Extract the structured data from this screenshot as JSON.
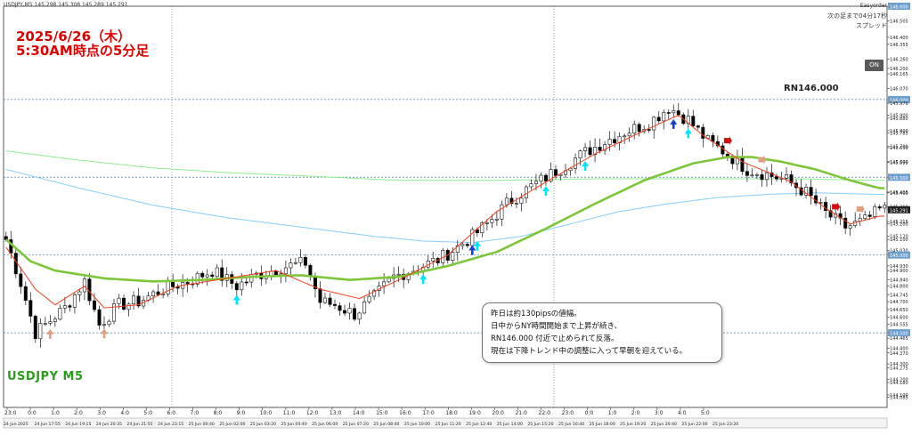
{
  "header": {
    "symbol_line": "USDJPY,M5  145.298 145.308 145.289 145.291",
    "indicator": "Easyorder",
    "countdown": "次の足まで04分17秒",
    "spread": "スプレッド"
  },
  "annotations": {
    "title_line1": "2025/6/26（木）",
    "title_line2": "5:30AM時点の5分足",
    "symbol": "USDJPY M5",
    "rn_label": "RN146.000",
    "on_button": "ON",
    "note_lines": [
      "昨日は約130pipsの値幅。",
      "日中からNY時間開始まで上昇が続き、",
      "RN146.000 付近で止められて反落。",
      "現在は下降トレンド中の調整に入って早朝を迎えている。"
    ]
  },
  "colors": {
    "bull": "#000000",
    "bear": "#000000",
    "ema_fast": "#f04020",
    "ema_mid": "#7dc63a",
    "ma_slow1": "#90ee90",
    "ma_slow2": "#87cefa",
    "title": "#e00000",
    "symbol": "#2a9d1a",
    "arrow_up": "#00e5ff",
    "arrow_buy": "#1a3cd6",
    "arrow_sell": "#d01010",
    "arrow_faint": "#e0a080"
  },
  "chart_data": {
    "type": "candlestick",
    "ylim": [
      144.02,
      146.6
    ],
    "y_ticks": [
      "146.600",
      "146.505",
      "146.400",
      "146.355",
      "146.260",
      "146.200",
      "146.165",
      "146.070",
      "146.000",
      "145.976",
      "145.900",
      "145.880",
      "145.800",
      "145.785",
      "145.700",
      "145.690",
      "145.600",
      "145.595",
      "145.500",
      "145.405",
      "145.400",
      "145.310",
      "145.291",
      "145.215",
      "145.200",
      "145.120",
      "145.100",
      "145.030",
      "145.000",
      "144.930",
      "144.900",
      "144.840",
      "144.800",
      "144.745",
      "144.700",
      "144.650",
      "144.600",
      "144.555",
      "144.500",
      "144.465",
      "144.400",
      "144.370",
      "144.300",
      "144.275",
      "144.200",
      "144.180",
      "144.100",
      "144.085",
      "144.000"
    ],
    "highlight_ticks": [
      "146.600",
      "146.000",
      "145.500",
      "145.291",
      "145.000",
      "144.500"
    ],
    "time_labels": [
      "23:0",
      "0:0",
      "1:0",
      "2:0",
      "3:0",
      "4:0",
      "5:0",
      "6:0",
      "7:0",
      "8:0",
      "9:0",
      "10:0",
      "11:0",
      "12:0",
      "13:0",
      "14:0",
      "15:0",
      "16:0",
      "17:0",
      "18:0",
      "19:0",
      "20:0",
      "21:0",
      "22:0",
      "23:0",
      "0:0",
      "1:0",
      "2:0",
      "3:0",
      "4:0",
      "5:0"
    ],
    "date_labels": [
      "24 Jun 2025",
      "24 Jun 17:55",
      "24 Jun 19:15",
      "24 Jun 20:35",
      "24 Jun 21:55",
      "24 Jun 23:15",
      "25 Jun 00:40",
      "25 Jun 02:00",
      "25 Jun 03:20",
      "25 Jun 04:40",
      "25 Jun 06:00",
      "25 Jun 07:20",
      "25 Jun 08:40",
      "25 Jun 10:00",
      "25 Jun 11:20",
      "25 Jun 12:40",
      "25 Jun 14:00",
      "25 Jun 15:20",
      "25 Jun 16:40",
      "25 Jun 18:00",
      "25 Jun 19:20",
      "25 Jun 20:40",
      "25 Jun 22:00",
      "25 Jun 23:20"
    ],
    "price_anchors": [
      [
        0,
        145.1
      ],
      [
        3,
        144.82
      ],
      [
        6,
        144.5
      ],
      [
        9,
        144.58
      ],
      [
        12,
        144.66
      ],
      [
        16,
        144.83
      ],
      [
        19,
        144.55
      ],
      [
        23,
        144.68
      ],
      [
        27,
        144.7
      ],
      [
        32,
        144.78
      ],
      [
        37,
        144.83
      ],
      [
        42,
        144.9
      ],
      [
        47,
        144.8
      ],
      [
        51,
        144.87
      ],
      [
        56,
        144.92
      ],
      [
        61,
        144.95
      ],
      [
        64,
        144.7
      ],
      [
        67,
        144.68
      ],
      [
        71,
        144.62
      ],
      [
        75,
        144.73
      ],
      [
        79,
        144.86
      ],
      [
        84,
        144.92
      ],
      [
        88,
        144.97
      ],
      [
        91,
        145.03
      ],
      [
        95,
        145.12
      ],
      [
        98,
        145.2
      ],
      [
        102,
        145.33
      ],
      [
        106,
        145.42
      ],
      [
        110,
        145.5
      ],
      [
        114,
        145.58
      ],
      [
        118,
        145.66
      ],
      [
        122,
        145.73
      ],
      [
        126,
        145.79
      ],
      [
        131,
        145.85
      ],
      [
        135,
        145.95
      ],
      [
        139,
        145.87
      ],
      [
        143,
        145.73
      ],
      [
        147,
        145.65
      ],
      [
        151,
        145.55
      ],
      [
        155,
        145.52
      ],
      [
        159,
        145.48
      ],
      [
        163,
        145.4
      ],
      [
        167,
        145.27
      ],
      [
        171,
        145.18
      ],
      [
        175,
        145.22
      ],
      [
        178,
        145.29
      ]
    ],
    "ema_fast_anchors": [
      [
        0,
        145.05
      ],
      [
        6,
        144.78
      ],
      [
        10,
        144.68
      ],
      [
        16,
        144.8
      ],
      [
        20,
        144.66
      ],
      [
        27,
        144.68
      ],
      [
        35,
        144.8
      ],
      [
        45,
        144.85
      ],
      [
        55,
        144.9
      ],
      [
        64,
        144.78
      ],
      [
        72,
        144.72
      ],
      [
        80,
        144.84
      ],
      [
        90,
        145.0
      ],
      [
        100,
        145.28
      ],
      [
        110,
        145.47
      ],
      [
        120,
        145.65
      ],
      [
        130,
        145.8
      ],
      [
        137,
        145.9
      ],
      [
        142,
        145.77
      ],
      [
        150,
        145.6
      ],
      [
        160,
        145.47
      ],
      [
        167,
        145.3
      ],
      [
        172,
        145.2
      ],
      [
        178,
        145.25
      ]
    ],
    "ema_mid_anchors": [
      [
        0,
        145.1
      ],
      [
        5,
        144.96
      ],
      [
        10,
        144.9
      ],
      [
        20,
        144.85
      ],
      [
        30,
        144.83
      ],
      [
        40,
        144.84
      ],
      [
        50,
        144.86
      ],
      [
        60,
        144.87
      ],
      [
        70,
        144.84
      ],
      [
        80,
        144.86
      ],
      [
        90,
        144.93
      ],
      [
        100,
        145.02
      ],
      [
        110,
        145.17
      ],
      [
        120,
        145.33
      ],
      [
        130,
        145.48
      ],
      [
        140,
        145.59
      ],
      [
        147,
        145.63
      ],
      [
        152,
        145.63
      ],
      [
        158,
        145.6
      ],
      [
        165,
        145.55
      ],
      [
        172,
        145.48
      ],
      [
        178,
        145.43
      ]
    ],
    "ma_slow1_anchors": [
      [
        0,
        145.67
      ],
      [
        15,
        145.61
      ],
      [
        30,
        145.56
      ],
      [
        45,
        145.53
      ],
      [
        60,
        145.51
      ],
      [
        80,
        145.48
      ],
      [
        100,
        145.48
      ],
      [
        120,
        145.49
      ],
      [
        140,
        145.49
      ],
      [
        160,
        145.49
      ],
      [
        178,
        145.48
      ]
    ],
    "ma_slow2_anchors": [
      [
        0,
        145.55
      ],
      [
        15,
        145.43
      ],
      [
        30,
        145.32
      ],
      [
        45,
        145.24
      ],
      [
        60,
        145.18
      ],
      [
        75,
        145.12
      ],
      [
        85,
        145.09
      ],
      [
        95,
        145.08
      ],
      [
        105,
        145.12
      ],
      [
        115,
        145.2
      ],
      [
        125,
        145.28
      ],
      [
        135,
        145.33
      ],
      [
        145,
        145.37
      ],
      [
        155,
        145.39
      ],
      [
        165,
        145.4
      ],
      [
        178,
        145.39
      ]
    ],
    "signals": [
      {
        "i": 47,
        "type": "up"
      },
      {
        "i": 85,
        "type": "up"
      },
      {
        "i": 95,
        "type": "buy"
      },
      {
        "i": 96,
        "type": "up"
      },
      {
        "i": 110,
        "type": "up"
      },
      {
        "i": 118,
        "type": "up"
      },
      {
        "i": 136,
        "type": "buy"
      },
      {
        "i": 139,
        "type": "up"
      },
      {
        "i": 147,
        "type": "sell"
      },
      {
        "i": 169,
        "type": "sell"
      },
      {
        "i": 9,
        "type": "faint"
      },
      {
        "i": 20,
        "type": "faint"
      },
      {
        "i": 154,
        "type": "faint"
      },
      {
        "i": 174,
        "type": "faint"
      }
    ]
  }
}
